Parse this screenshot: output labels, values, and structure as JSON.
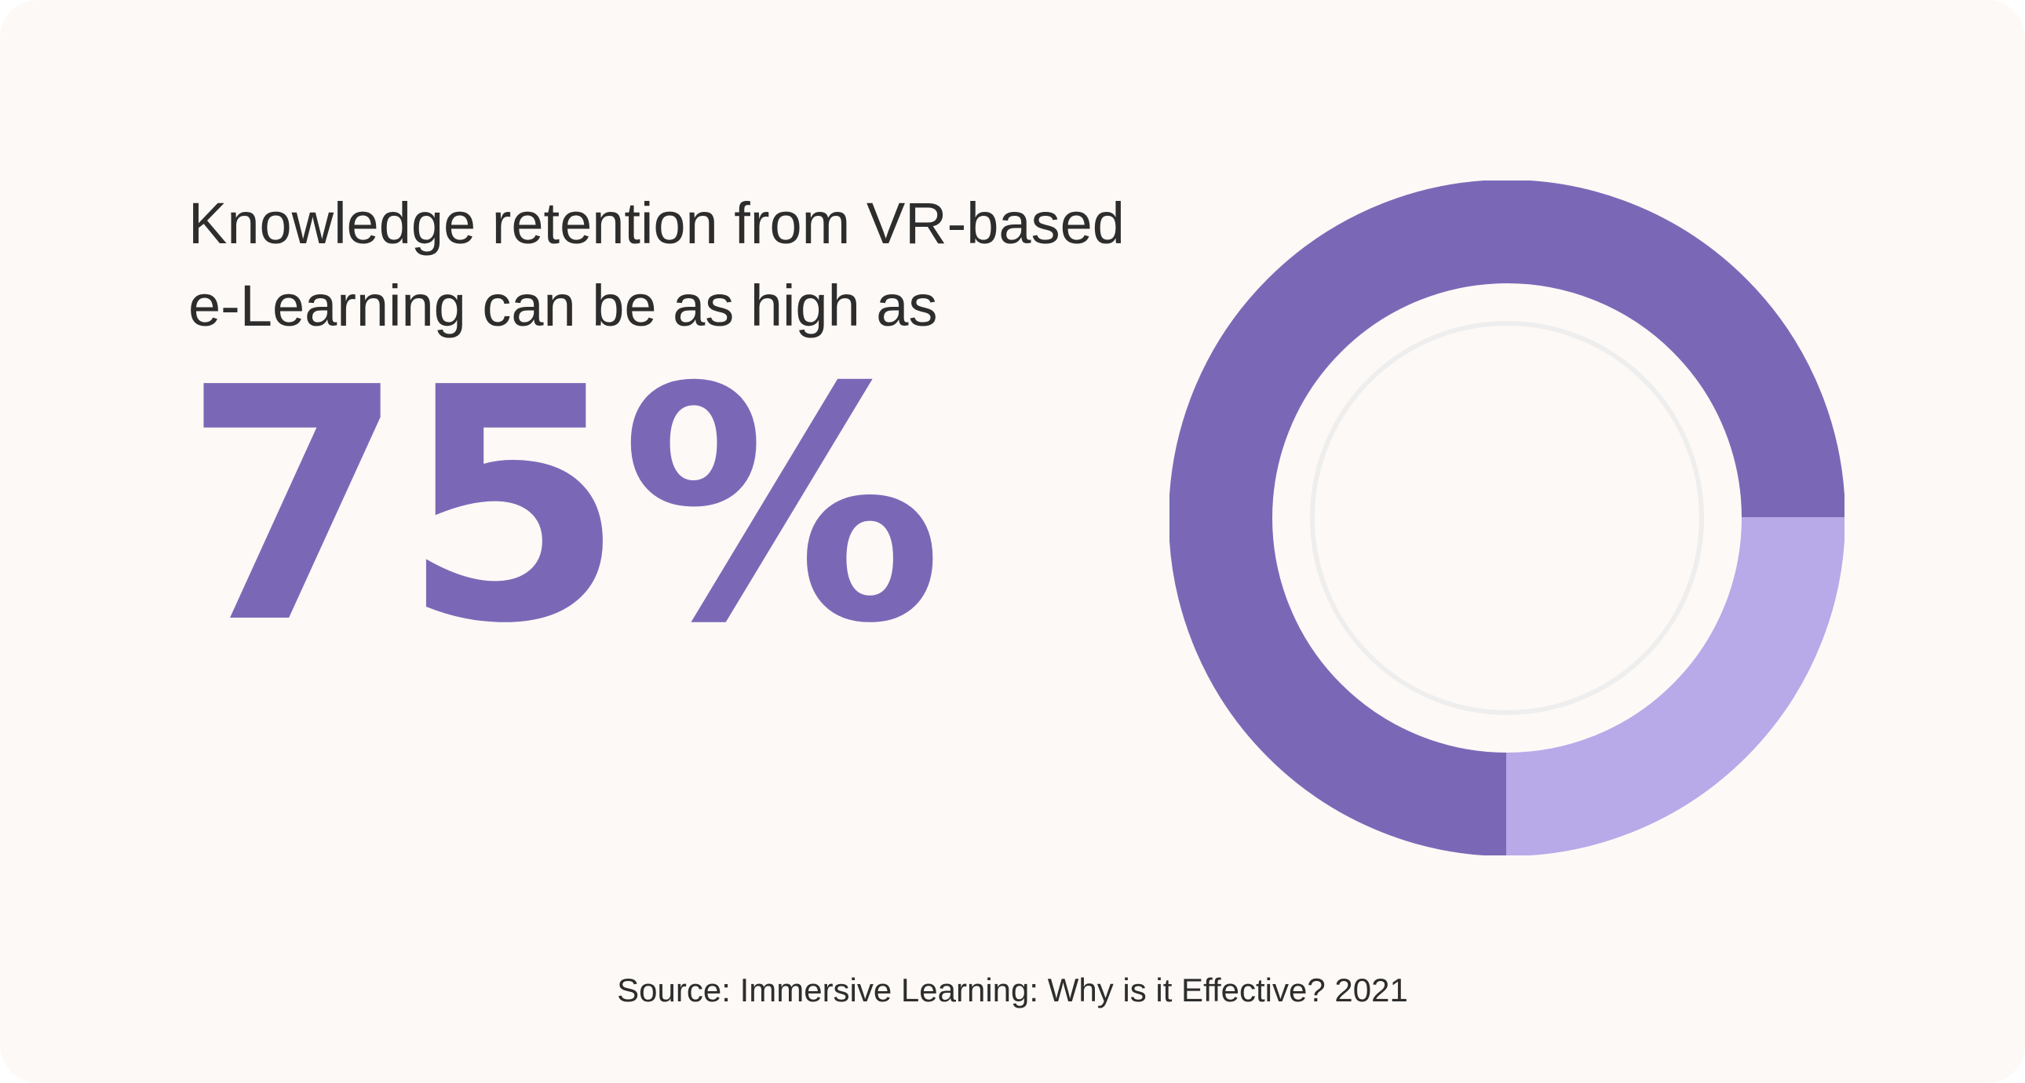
{
  "headline": {
    "line1": "Knowledge retention from VR-based",
    "line2": "e-Learning can be as high as"
  },
  "big_value": "75%",
  "source": "Source: Immersive Learning: Why is it Effective? 2021",
  "colors": {
    "background": "#fdf9f6",
    "accent": "#7a68b7",
    "accent_light": "#b8a9e9",
    "inner_ring": "#eeeeee",
    "text": "#2d2d2d"
  },
  "chart_data": {
    "type": "pie",
    "style": "donut",
    "categories": [
      "",
      ""
    ],
    "values": [
      75,
      25
    ],
    "colors": [
      "#7a68b7",
      "#b8a9e9"
    ],
    "start_angle_deg": 0,
    "direction": "counterclockwise",
    "legend": "none"
  }
}
